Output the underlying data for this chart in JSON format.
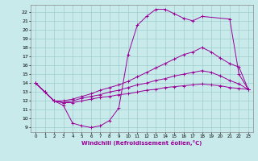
{
  "xlabel": "Windchill (Refroidissement éolien,°C)",
  "xlim": [
    -0.5,
    23.5
  ],
  "ylim": [
    8.5,
    22.8
  ],
  "xticks": [
    0,
    1,
    2,
    3,
    4,
    5,
    6,
    7,
    8,
    9,
    10,
    11,
    12,
    13,
    14,
    15,
    16,
    17,
    18,
    19,
    20,
    21,
    22,
    23
  ],
  "yticks": [
    9,
    10,
    11,
    12,
    13,
    14,
    15,
    16,
    17,
    18,
    19,
    20,
    21,
    22
  ],
  "bg_color": "#c8eaea",
  "line_color": "#990099",
  "grid_color": "#a0cccc",
  "lines": [
    {
      "x": [
        0,
        1,
        2,
        3,
        4,
        5,
        6,
        7,
        8,
        9,
        10,
        11,
        12,
        13,
        14,
        15,
        16,
        17,
        18,
        21,
        22,
        23
      ],
      "y": [
        14,
        13,
        12,
        11.5,
        9.5,
        9.2,
        9.0,
        9.2,
        9.8,
        11.2,
        17.2,
        20.5,
        21.5,
        22.3,
        22.3,
        21.8,
        21.3,
        21.0,
        21.5,
        21.2,
        15.0,
        13.3
      ]
    },
    {
      "x": [
        0,
        1,
        2,
        3,
        4,
        5,
        6,
        7,
        8,
        9,
        10,
        11,
        12,
        13,
        14,
        15,
        16,
        17,
        18,
        19,
        20,
        21,
        22,
        23
      ],
      "y": [
        14,
        13,
        12,
        12.0,
        12.2,
        12.5,
        12.8,
        13.2,
        13.5,
        13.8,
        14.2,
        14.7,
        15.2,
        15.7,
        16.2,
        16.7,
        17.2,
        17.5,
        18.0,
        17.5,
        16.8,
        16.2,
        15.8,
        13.3
      ]
    },
    {
      "x": [
        0,
        1,
        2,
        3,
        4,
        5,
        6,
        7,
        8,
        9,
        10,
        11,
        12,
        13,
        14,
        15,
        16,
        17,
        18,
        19,
        20,
        21,
        22,
        23
      ],
      "y": [
        14,
        13,
        12,
        11.8,
        11.8,
        12.0,
        12.2,
        12.4,
        12.5,
        12.7,
        12.8,
        13.0,
        13.2,
        13.3,
        13.5,
        13.6,
        13.7,
        13.8,
        13.9,
        13.8,
        13.7,
        13.5,
        13.4,
        13.3
      ]
    },
    {
      "x": [
        0,
        1,
        2,
        3,
        4,
        5,
        6,
        7,
        8,
        9,
        10,
        11,
        12,
        13,
        14,
        15,
        16,
        17,
        18,
        19,
        20,
        21,
        22,
        23
      ],
      "y": [
        14,
        13,
        12,
        11.8,
        12.0,
        12.3,
        12.5,
        12.7,
        13.0,
        13.2,
        13.5,
        13.8,
        14.0,
        14.3,
        14.5,
        14.8,
        15.0,
        15.2,
        15.4,
        15.2,
        14.8,
        14.3,
        13.9,
        13.3
      ]
    }
  ]
}
